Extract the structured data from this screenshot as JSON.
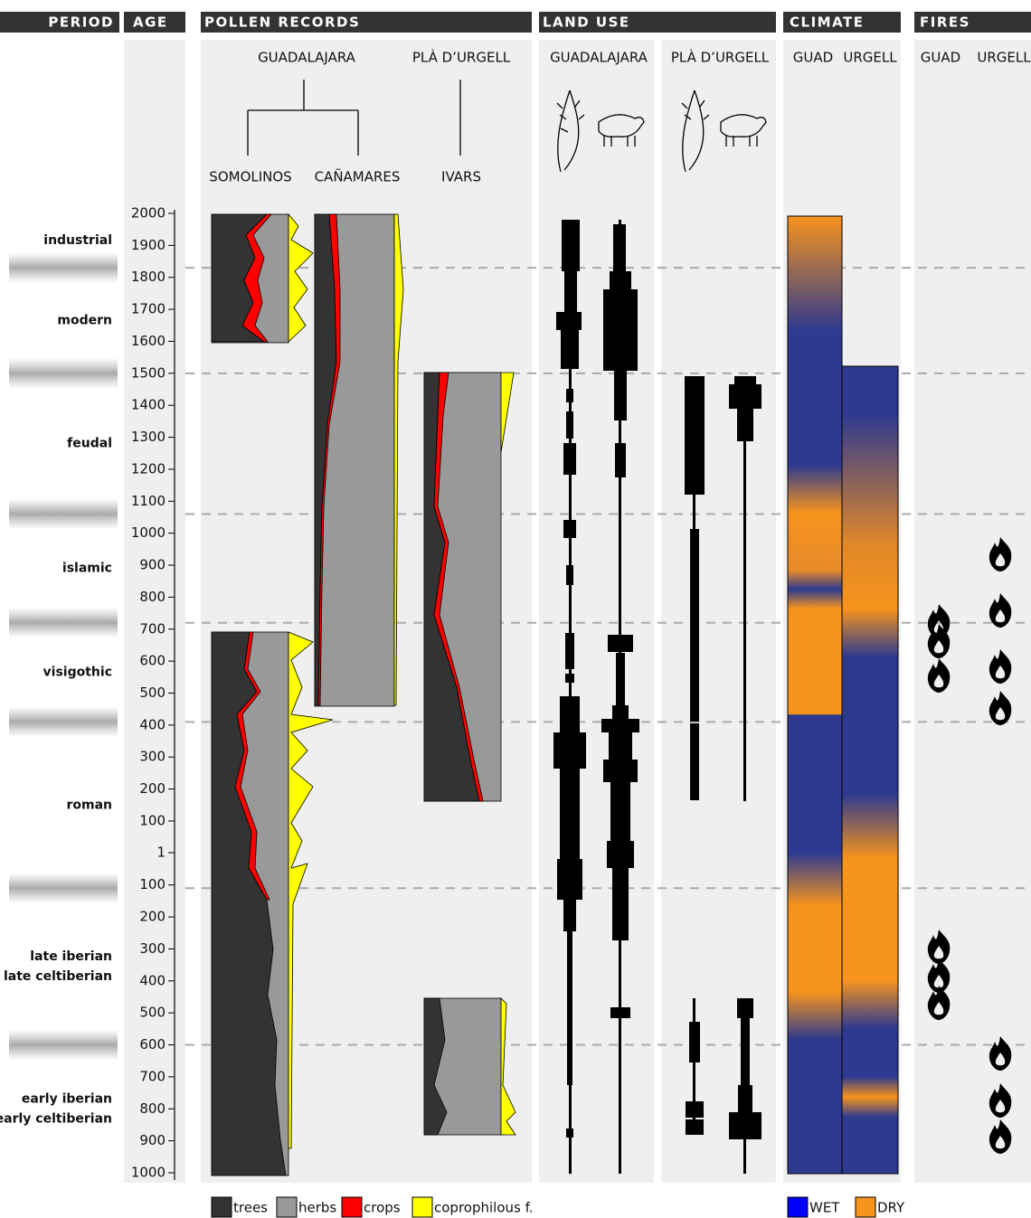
{
  "header": {
    "columns": [
      "PERIOD",
      "AGE",
      "POLLEN RECORDS",
      "LAND USE",
      "CLIMATE",
      "FIRES"
    ]
  },
  "pollen": {
    "regions": [
      "GUADALAJARA",
      "PLÀ D’URGELL"
    ],
    "sites": [
      "SOMOLINOS",
      "CAÑAMARES",
      "IVARS"
    ]
  },
  "land_use": {
    "regions": [
      "GUADALAJARA",
      "PLÀ D’URGELL"
    ]
  },
  "climate": {
    "regions": [
      "GUAD",
      "URGELL"
    ]
  },
  "fires": {
    "regions": [
      "GUAD",
      "URGELL"
    ]
  },
  "periods": [
    [
      "industrial"
    ],
    [
      "modern"
    ],
    [
      "feudal"
    ],
    [
      "islamic"
    ],
    [
      "visigothic"
    ],
    [
      "roman"
    ],
    [
      "late iberian",
      "late celtiberian"
    ],
    [
      "early iberian",
      "early celtiberian"
    ]
  ],
  "period_boundaries": [
    1830,
    1500,
    1060,
    720,
    410,
    -110,
    -600
  ],
  "age_axis": {
    "ylim": [
      2000,
      -1000
    ],
    "yticks": [
      2000,
      1900,
      1800,
      1700,
      1600,
      1500,
      1400,
      1300,
      1200,
      1100,
      1000,
      900,
      800,
      700,
      600,
      500,
      400,
      300,
      200,
      100,
      1,
      {
        "value": -100,
        "label": "100"
      },
      {
        "value": -200,
        "label": "200"
      },
      {
        "value": -300,
        "label": "300"
      },
      {
        "value": -400,
        "label": "400"
      },
      {
        "value": -500,
        "label": "500"
      },
      {
        "value": -600,
        "label": "600"
      },
      {
        "value": -700,
        "label": "700"
      },
      {
        "value": -800,
        "label": "800"
      },
      {
        "value": -900,
        "label": "900"
      },
      {
        "value": -1000,
        "label": "1000"
      }
    ]
  },
  "legend": {
    "pollen": [
      {
        "name": "trees",
        "color": "#333333"
      },
      {
        "name": "herbs",
        "color": "#999999"
      },
      {
        "name": "crops",
        "color": "#ff0000"
      },
      {
        "name": "coprophilous f.",
        "color": "#ffff00"
      }
    ],
    "climate": [
      {
        "name": "WET",
        "color": "#0000ff"
      },
      {
        "name": "DRY",
        "color": "#f7941d"
      }
    ]
  }
}
